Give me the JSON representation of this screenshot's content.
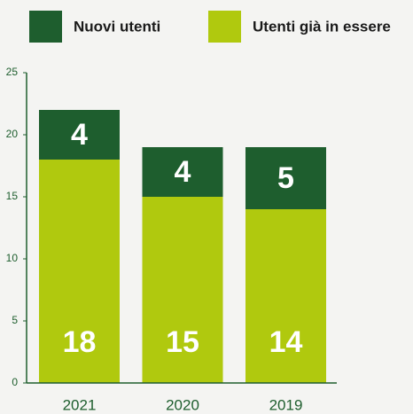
{
  "chart_data": {
    "type": "stacked_bar",
    "categories": [
      "2021",
      "2020",
      "2019"
    ],
    "series": [
      {
        "name": "Nuovi utenti",
        "color": "#1e5e2e",
        "values": [
          4,
          4,
          5
        ]
      },
      {
        "name": "Utenti già in essere",
        "color": "#b0c90e",
        "values": [
          18,
          15,
          14
        ]
      }
    ],
    "ylim": [
      0,
      25
    ],
    "yticks": [
      0,
      5,
      10,
      15,
      20,
      25
    ],
    "legend": "top"
  }
}
